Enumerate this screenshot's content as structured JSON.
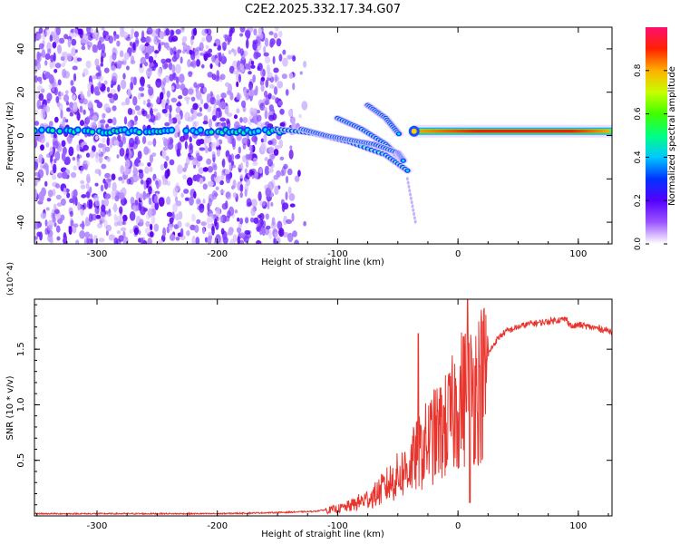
{
  "page": {
    "title": "C2E2.2025.332.17.34.G07"
  },
  "chart_data": [
    {
      "type": "heatmap",
      "name": "spectrogram",
      "title": "C2E2.2025.332.17.34.G07",
      "xlabel": "Height of straight line (km)",
      "ylabel": "Frequency (Hz)",
      "xlim": [
        -352,
        128
      ],
      "ylim": [
        -50,
        50
      ],
      "x_ticks": [
        -300,
        -200,
        -100,
        0,
        100
      ],
      "y_ticks": [
        -40,
        -20,
        0,
        20,
        40
      ],
      "x_tick_labels": [
        "-300",
        "-200",
        "-100",
        "0",
        "100"
      ],
      "y_tick_labels": [
        "-40",
        "-20",
        "0",
        "20",
        "40"
      ],
      "colorbar": {
        "label": "Normalized spectral amplitude",
        "range": [
          0.0,
          1.0
        ],
        "ticks": [
          0.0,
          0.2,
          0.4,
          0.6,
          0.8
        ],
        "tick_labels": [
          "0.0",
          "0.2",
          "0.4",
          "0.6",
          "0.8"
        ]
      },
      "features": {
        "noise_region_x": [
          -352,
          -125
        ],
        "carrier_tone": {
          "x_range": [
            -352,
            -145
          ],
          "frequency_hz": 2,
          "amplitude": 0.3
        },
        "occulted_branches": [
          {
            "x": [
              -150,
              -120,
              -90,
              -60,
              -40
            ],
            "freq_hz": [
              3,
              1,
              -3,
              -9,
              -17
            ],
            "amplitude": 0.35
          },
          {
            "x": [
              -100,
              -80,
              -60,
              -45
            ],
            "freq_hz": [
              8,
              3,
              -4,
              -12
            ],
            "amplitude": 0.3
          },
          {
            "x": [
              -75,
              -60,
              -48
            ],
            "freq_hz": [
              14,
              8,
              0
            ],
            "amplitude": 0.3
          },
          {
            "x": [
              -130,
              -110,
              -90,
              -70,
              -50,
              -45
            ],
            "freq_hz": [
              3,
              0,
              -2,
              -4,
              -8,
              -12
            ],
            "amplitude": 0.35
          }
        ],
        "strong_tone": {
          "x_range": [
            -38,
            128
          ],
          "frequency_hz": 2,
          "amplitude": 0.95
        }
      }
    },
    {
      "type": "line",
      "name": "snr",
      "title": "",
      "xlabel": "Height of straight line (km)",
      "ylabel": "SNR (10 * v/v)",
      "y_multiplier_label": "(x10^4)",
      "xlim": [
        -352,
        128
      ],
      "ylim": [
        0,
        1.95
      ],
      "x_ticks": [
        -300,
        -200,
        -100,
        0,
        100
      ],
      "y_ticks": [
        0.5,
        1.0,
        1.5
      ],
      "x_tick_labels": [
        "-300",
        "-200",
        "-100",
        "0",
        "100"
      ],
      "y_tick_labels": [
        "0.5",
        "1.0",
        "1.5"
      ],
      "series": [
        {
          "name": "SNR",
          "color": "#e8342c",
          "x": [
            -352,
            -300,
            -250,
            -200,
            -150,
            -120,
            -100,
            -90,
            -80,
            -70,
            -60,
            -50,
            -40,
            -35,
            -30,
            -25,
            -20,
            -15,
            -10,
            -5,
            0,
            5,
            10,
            15,
            20,
            25,
            30,
            35,
            40,
            50,
            60,
            70,
            80,
            90,
            95,
            100,
            110,
            120,
            128
          ],
          "values": [
            0.02,
            0.02,
            0.02,
            0.02,
            0.03,
            0.04,
            0.07,
            0.1,
            0.15,
            0.2,
            0.3,
            0.4,
            0.5,
            0.6,
            0.65,
            0.75,
            0.8,
            0.85,
            0.9,
            1.0,
            1.15,
            1.2,
            1.25,
            1.3,
            1.35,
            1.45,
            1.55,
            1.62,
            1.66,
            1.7,
            1.73,
            1.74,
            1.76,
            1.77,
            1.7,
            1.72,
            1.7,
            1.68,
            1.66
          ]
        }
      ]
    }
  ]
}
